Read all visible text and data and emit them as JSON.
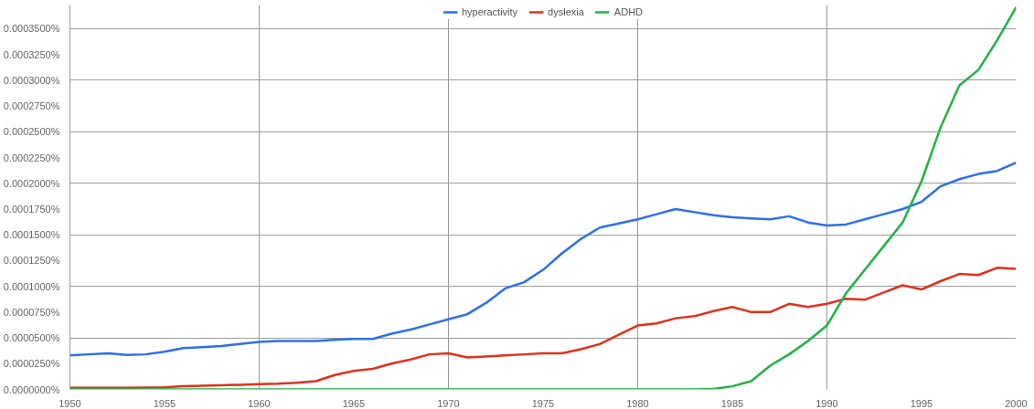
{
  "chart_data": {
    "type": "line",
    "x": [
      1950,
      1951,
      1952,
      1953,
      1954,
      1955,
      1956,
      1957,
      1958,
      1959,
      1960,
      1961,
      1962,
      1963,
      1964,
      1965,
      1966,
      1967,
      1968,
      1969,
      1970,
      1971,
      1972,
      1973,
      1974,
      1975,
      1976,
      1977,
      1978,
      1979,
      1980,
      1981,
      1982,
      1983,
      1984,
      1985,
      1986,
      1987,
      1988,
      1989,
      1990,
      1991,
      1992,
      1993,
      1994,
      1995,
      1996,
      1997,
      1998,
      1999,
      2000
    ],
    "series": [
      {
        "name": "hyperactivity",
        "color": "#2a6ff0",
        "values": [
          3.3e-05,
          3.4e-05,
          3.5e-05,
          3.35e-05,
          3.4e-05,
          3.65e-05,
          4e-05,
          4.1e-05,
          4.2e-05,
          4.4e-05,
          4.6e-05,
          4.7e-05,
          4.7e-05,
          4.7e-05,
          4.8e-05,
          4.9e-05,
          4.9e-05,
          5.4e-05,
          5.8e-05,
          6.3e-05,
          6.8e-05,
          7.3e-05,
          8.4e-05,
          9.8e-05,
          0.000104,
          0.000116,
          0.000132,
          0.000146,
          0.000157,
          0.000161,
          0.000165,
          0.00017,
          0.000175,
          0.000172,
          0.000169,
          0.000167,
          0.000166,
          0.000165,
          0.000168,
          0.000162,
          0.000159,
          0.00016,
          0.000165,
          0.00017,
          0.000175,
          0.000182,
          0.000197,
          0.000204,
          0.000209,
          0.000212,
          0.00022
        ]
      },
      {
        "name": "dyslexia",
        "color": "#e3301b",
        "values": [
          1.5e-06,
          1.5e-06,
          1.5e-06,
          1.5e-06,
          1.8e-06,
          2e-06,
          3e-06,
          3.5e-06,
          4e-06,
          4.5e-06,
          5e-06,
          5.5e-06,
          6.5e-06,
          8e-06,
          1.4e-05,
          1.8e-05,
          2e-05,
          2.5e-05,
          2.9e-05,
          3.4e-05,
          3.5e-05,
          3.1e-05,
          3.2e-05,
          3.3e-05,
          3.4e-05,
          3.5e-05,
          3.5e-05,
          3.9e-05,
          4.4e-05,
          5.3e-05,
          6.2e-05,
          6.4e-05,
          6.9e-05,
          7.1e-05,
          7.6e-05,
          8e-05,
          7.5e-05,
          7.5e-05,
          8.3e-05,
          8e-05,
          8.3e-05,
          8.8e-05,
          8.7e-05,
          9.4e-05,
          0.000101,
          9.7e-05,
          0.000105,
          0.000112,
          0.000111,
          0.000118,
          0.000117
        ]
      },
      {
        "name": "ADHD",
        "color": "#1fb344",
        "values": [
          0,
          0,
          0,
          0,
          0,
          0,
          0,
          0,
          0,
          0,
          0,
          0,
          0,
          0,
          0,
          0,
          0,
          0,
          0,
          0,
          0,
          0,
          0,
          0,
          0,
          0,
          0,
          0,
          0,
          0,
          0,
          0,
          0,
          0,
          5e-07,
          3e-06,
          8e-06,
          2.3e-05,
          3.4e-05,
          4.7e-05,
          6.2e-05,
          9.3e-05,
          0.000116,
          0.000139,
          0.000162,
          0.000202,
          0.000254,
          0.000295,
          0.00031,
          0.000339,
          0.000371
        ]
      }
    ],
    "xlim": [
      1950,
      2000
    ],
    "ylim": [
      0,
      0.000373
    ],
    "xticks": [
      1950,
      1955,
      1960,
      1965,
      1970,
      1975,
      1980,
      1985,
      1990,
      1995,
      2000
    ],
    "yticks": [
      {
        "value": 0,
        "label": "0.0000000%"
      },
      {
        "value": 2.5e-05,
        "label": "0.0000250%"
      },
      {
        "value": 5e-05,
        "label": "0.0000500%"
      },
      {
        "value": 7.5e-05,
        "label": "0.0000750%"
      },
      {
        "value": 0.0001,
        "label": "0.0001000%"
      },
      {
        "value": 0.000125,
        "label": "0.0001250%"
      },
      {
        "value": 0.00015,
        "label": "0.0001500%"
      },
      {
        "value": 0.000175,
        "label": "0.0001750%"
      },
      {
        "value": 0.0002,
        "label": "0.0002000%"
      },
      {
        "value": 0.000225,
        "label": "0.0002250%"
      },
      {
        "value": 0.00025,
        "label": "0.0002500%"
      },
      {
        "value": 0.000275,
        "label": "0.0002750%"
      },
      {
        "value": 0.0003,
        "label": "0.0003000%"
      },
      {
        "value": 0.000325,
        "label": "0.0003250%"
      },
      {
        "value": 0.00035,
        "label": "0.0003500%"
      }
    ],
    "grid": true,
    "legend": "top",
    "marker": "none",
    "line_style": "solid"
  }
}
